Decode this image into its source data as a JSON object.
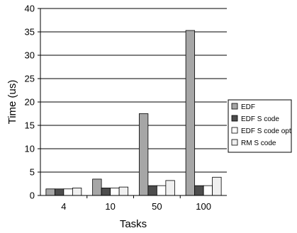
{
  "chart_data": {
    "type": "bar",
    "title": "",
    "xlabel": "Tasks",
    "ylabel": "Time (us)",
    "categories": [
      "4",
      "10",
      "50",
      "100"
    ],
    "ylim": [
      0,
      40
    ],
    "yticks": [
      0,
      5,
      10,
      15,
      20,
      25,
      30,
      35,
      40
    ],
    "grid": "horizontal",
    "legend_position": "right",
    "series": [
      {
        "name": "EDF",
        "color": "#a6a6a6",
        "values": [
          1.4,
          3.5,
          17.5,
          35.3
        ]
      },
      {
        "name": "EDF S code",
        "color": "#4d4d4d",
        "values": [
          1.4,
          1.6,
          2.1,
          2.1
        ]
      },
      {
        "name": "EDF S code opt",
        "color": "#ffffff",
        "values": [
          1.4,
          1.6,
          2.1,
          2.1
        ]
      },
      {
        "name": "RM S code",
        "color": "#f0f0f0",
        "values": [
          1.6,
          1.8,
          3.2,
          3.9
        ]
      }
    ]
  }
}
